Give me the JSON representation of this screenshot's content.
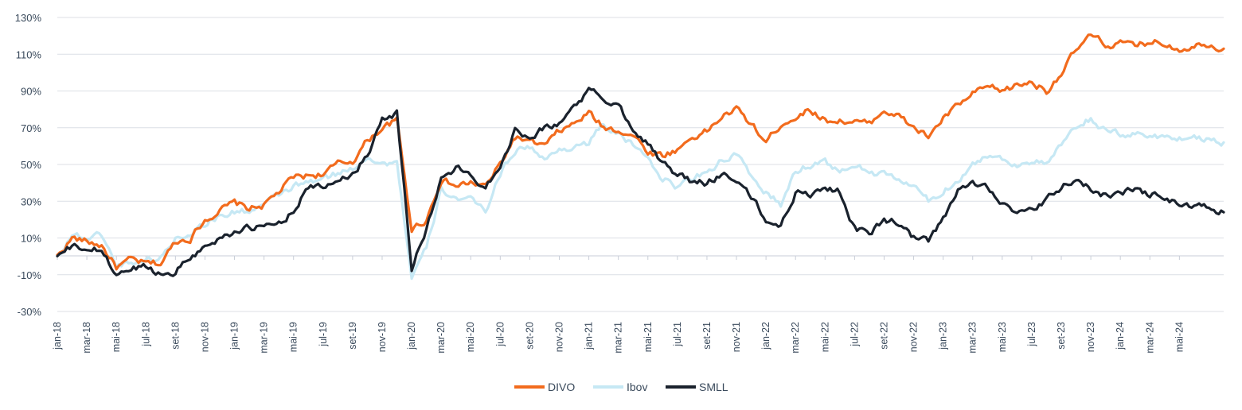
{
  "chart_data": {
    "type": "line",
    "title": "",
    "xlabel": "",
    "ylabel": "",
    "ylim": [
      -30,
      130
    ],
    "yticks": [
      130,
      110,
      90,
      70,
      50,
      30,
      10,
      -10,
      -30
    ],
    "ytick_labels": [
      "130%",
      "110%",
      "90%",
      "70%",
      "50%",
      "30%",
      "10%",
      "-10%",
      "-30%"
    ],
    "xticks": [
      "jan-18",
      "mar-18",
      "mai-18",
      "jul-18",
      "set-18",
      "nov-18",
      "jan-19",
      "mar-19",
      "mai-19",
      "jul-19",
      "set-19",
      "nov-19",
      "jan-20",
      "mar-20",
      "mai-20",
      "jul-20",
      "set-20",
      "nov-20",
      "jan-21",
      "mar-21",
      "mai-21",
      "jul-21",
      "set-21",
      "nov-21",
      "jan-22",
      "mar-22",
      "mai-22",
      "jul-22",
      "set-22",
      "nov-22",
      "jan-23",
      "mar-23",
      "mai-23",
      "jul-23",
      "set-23",
      "nov-23",
      "jan-24",
      "mar-24",
      "mai-24"
    ],
    "grid": true,
    "legend_position": "bottom-center",
    "x_months": [
      0,
      1,
      2,
      3,
      4,
      5,
      6,
      7,
      8,
      9,
      10,
      11,
      12,
      13,
      14,
      15,
      16,
      17,
      18,
      19,
      20,
      21,
      22,
      23,
      24,
      25,
      26,
      27,
      28,
      29,
      30,
      31,
      32,
      33,
      34,
      35,
      36,
      37,
      38,
      39,
      40,
      41,
      42,
      43,
      44,
      45,
      46,
      47,
      48,
      49,
      50,
      51,
      52,
      53,
      54,
      55,
      56,
      57,
      58,
      59,
      60,
      61,
      62,
      63,
      64,
      65,
      66,
      67,
      68,
      69,
      70,
      71,
      72,
      73,
      74,
      75,
      76,
      77,
      78,
      79
    ],
    "series": [
      {
        "name": "DIVO",
        "color": "#f26b1d",
        "values": [
          0,
          10,
          8,
          6,
          -6,
          -2,
          -4,
          -4,
          8,
          10,
          20,
          25,
          29,
          26,
          28,
          35,
          43,
          44,
          45,
          50,
          52,
          63,
          70,
          74,
          15,
          20,
          42,
          38,
          40,
          38,
          50,
          65,
          62,
          60,
          68,
          72,
          78,
          70,
          69,
          66,
          57,
          55,
          58,
          65,
          68,
          76,
          80,
          72,
          62,
          72,
          76,
          80,
          74,
          74,
          73,
          72,
          80,
          76,
          70,
          65,
          75,
          82,
          88,
          92,
          90,
          93,
          95,
          90,
          100,
          112,
          120,
          115,
          116,
          114,
          117,
          116,
          113,
          115,
          116,
          113
        ]
      },
      {
        "name": "Ibov",
        "color": "#c6e8f4",
        "values": [
          0,
          12,
          10,
          12,
          -5,
          -3,
          -2,
          -1,
          10,
          13,
          18,
          22,
          24,
          25,
          28,
          33,
          38,
          40,
          42,
          45,
          48,
          55,
          50,
          52,
          -12,
          4,
          36,
          32,
          30,
          25,
          45,
          58,
          60,
          52,
          58,
          60,
          62,
          72,
          66,
          60,
          55,
          42,
          38,
          42,
          47,
          52,
          56,
          42,
          35,
          28,
          46,
          50,
          52,
          45,
          50,
          46,
          44,
          42,
          38,
          30,
          35,
          42,
          50,
          55,
          53,
          50,
          52,
          50,
          60,
          70,
          75,
          68,
          66,
          67,
          65,
          66,
          64,
          65,
          64,
          62
        ]
      },
      {
        "name": "SMLL",
        "color": "#1a222d",
        "values": [
          0,
          5,
          4,
          3,
          -10,
          -7,
          -5,
          -10,
          -8,
          0,
          5,
          10,
          14,
          15,
          16,
          18,
          25,
          38,
          37,
          42,
          45,
          55,
          76,
          78,
          -6,
          15,
          42,
          48,
          44,
          38,
          50,
          68,
          66,
          70,
          72,
          82,
          90,
          86,
          82,
          70,
          62,
          50,
          45,
          40,
          40,
          45,
          42,
          32,
          20,
          16,
          35,
          34,
          38,
          35,
          15,
          12,
          20,
          18,
          10,
          8,
          20,
          35,
          40,
          38,
          30,
          22,
          25,
          30,
          38,
          42,
          36,
          33,
          35,
          36,
          34,
          32,
          28,
          27,
          26,
          24
        ]
      }
    ]
  }
}
